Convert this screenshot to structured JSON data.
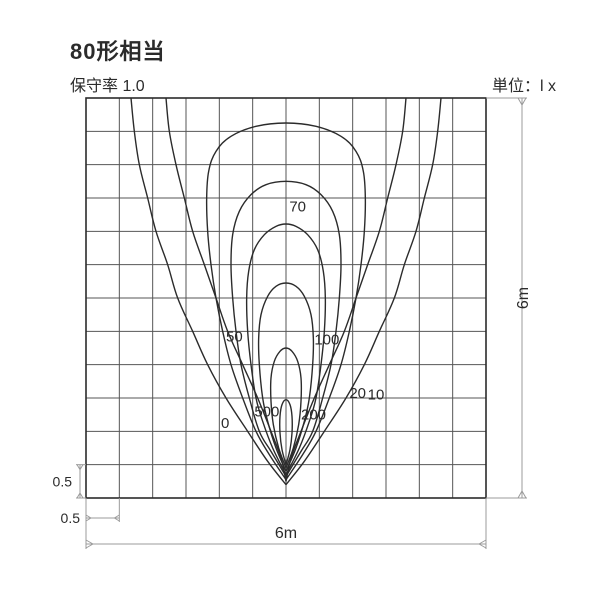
{
  "title": "80形相当",
  "subtitle_left": "保守率 1.0",
  "subtitle_right": "単位：l x",
  "plot": {
    "type": "isolux-diagram",
    "grid": {
      "size_m": 6.0,
      "cells": 12,
      "cell_m": 0.5,
      "background_color": "#ffffff",
      "grid_color": "#565656",
      "border_color": "#2b2b2b",
      "grid_width": 1,
      "border_width": 1.6
    },
    "dimension": {
      "x_label": "6m",
      "y_label": "6m",
      "minor_label": "0.5",
      "minor_label2": "0.5",
      "line_color": "#9b9b9b",
      "text_color": "#2b2b2b",
      "fontsize": 16,
      "minor_fontsize": 14
    },
    "curve_style": {
      "stroke": "#2b2b2b",
      "width": 1.4,
      "label_fontsize": 15
    },
    "iso_levels": [
      0,
      10,
      20,
      50,
      70,
      100,
      200,
      500
    ],
    "iso_curves": [
      {
        "level": "0",
        "label_xy": [
          4.05,
          9.9
        ],
        "points": [
          [
            1.35,
            0
          ],
          [
            1.45,
            1
          ],
          [
            1.6,
            2
          ],
          [
            1.85,
            3
          ],
          [
            2.1,
            4
          ],
          [
            2.45,
            5
          ],
          [
            2.75,
            6
          ],
          [
            3.2,
            7
          ],
          [
            3.65,
            8
          ],
          [
            4.2,
            9
          ],
          [
            4.85,
            10
          ],
          [
            5.45,
            10.9
          ],
          [
            6.0,
            11.6
          ]
        ]
      },
      {
        "level": "0r",
        "label_xy": null,
        "points": [
          [
            10.65,
            0
          ],
          [
            10.55,
            1
          ],
          [
            10.4,
            2
          ],
          [
            10.15,
            3
          ],
          [
            9.9,
            4
          ],
          [
            9.55,
            5
          ],
          [
            9.25,
            6
          ],
          [
            8.8,
            7
          ],
          [
            8.35,
            8
          ],
          [
            7.8,
            9
          ],
          [
            7.15,
            10
          ],
          [
            6.55,
            10.9
          ],
          [
            6.0,
            11.6
          ]
        ]
      },
      {
        "level": "10",
        "label_xy": [
          8.45,
          9.05
        ],
        "points": [
          [
            2.4,
            0
          ],
          [
            2.5,
            1
          ],
          [
            2.7,
            2
          ],
          [
            2.95,
            3
          ],
          [
            3.2,
            4
          ],
          [
            3.55,
            5
          ],
          [
            3.9,
            6
          ],
          [
            4.25,
            7
          ],
          [
            4.7,
            8
          ],
          [
            5.15,
            9
          ],
          [
            5.55,
            10
          ],
          [
            5.85,
            10.8
          ],
          [
            6.0,
            11.5
          ]
        ]
      },
      {
        "level": "10r",
        "label_xy": null,
        "points": [
          [
            9.6,
            0
          ],
          [
            9.5,
            1
          ],
          [
            9.3,
            2
          ],
          [
            9.05,
            3
          ],
          [
            8.8,
            4
          ],
          [
            8.45,
            5
          ],
          [
            8.1,
            6
          ],
          [
            7.75,
            7
          ],
          [
            7.3,
            8
          ],
          [
            6.85,
            9
          ],
          [
            6.45,
            10
          ],
          [
            6.15,
            10.8
          ],
          [
            6.0,
            11.5
          ]
        ]
      },
      {
        "level": "20",
        "label_xy": [
          7.9,
          9.0
        ],
        "points": [
          [
            6.0,
            11.45
          ],
          [
            5.5,
            10.7
          ],
          [
            5.1,
            10
          ],
          [
            4.7,
            9
          ],
          [
            4.35,
            8
          ],
          [
            4.1,
            7
          ],
          [
            3.9,
            6
          ],
          [
            3.75,
            5
          ],
          [
            3.65,
            4
          ],
          [
            3.62,
            3
          ],
          [
            3.68,
            2.2
          ],
          [
            3.9,
            1.6
          ],
          [
            4.35,
            1.15
          ],
          [
            5.1,
            0.85
          ],
          [
            6.0,
            0.75
          ],
          [
            6.9,
            0.85
          ],
          [
            7.65,
            1.15
          ],
          [
            8.1,
            1.6
          ],
          [
            8.32,
            2.2
          ],
          [
            8.38,
            3
          ],
          [
            8.35,
            4
          ],
          [
            8.25,
            5
          ],
          [
            8.1,
            6
          ],
          [
            7.9,
            7
          ],
          [
            7.65,
            8
          ],
          [
            7.3,
            9
          ],
          [
            6.9,
            10
          ],
          [
            6.5,
            10.7
          ],
          [
            6.0,
            11.45
          ]
        ]
      },
      {
        "level": "50",
        "label_xy": [
          4.2,
          7.3
        ],
        "points": [
          [
            6.0,
            11.35
          ],
          [
            5.55,
            10.6
          ],
          [
            5.2,
            10
          ],
          [
            4.9,
            9
          ],
          [
            4.65,
            8
          ],
          [
            4.5,
            7
          ],
          [
            4.4,
            6
          ],
          [
            4.35,
            5
          ],
          [
            4.4,
            4.1
          ],
          [
            4.6,
            3.4
          ],
          [
            4.95,
            2.9
          ],
          [
            5.4,
            2.6
          ],
          [
            6.0,
            2.5
          ],
          [
            6.6,
            2.6
          ],
          [
            7.05,
            2.9
          ],
          [
            7.4,
            3.4
          ],
          [
            7.6,
            4.1
          ],
          [
            7.65,
            5
          ],
          [
            7.6,
            6
          ],
          [
            7.5,
            7
          ],
          [
            7.35,
            8
          ],
          [
            7.1,
            9
          ],
          [
            6.8,
            10
          ],
          [
            6.45,
            10.6
          ],
          [
            6.0,
            11.35
          ]
        ]
      },
      {
        "level": "70",
        "label_xy": [
          6.1,
          3.4
        ],
        "points": [
          [
            6.0,
            11.3
          ],
          [
            5.6,
            10.5
          ],
          [
            5.3,
            9.7
          ],
          [
            5.1,
            9
          ],
          [
            4.95,
            8
          ],
          [
            4.85,
            7
          ],
          [
            4.82,
            6
          ],
          [
            4.88,
            5.2
          ],
          [
            5.05,
            4.55
          ],
          [
            5.35,
            4.1
          ],
          [
            5.7,
            3.85
          ],
          [
            6.0,
            3.78
          ],
          [
            6.3,
            3.85
          ],
          [
            6.65,
            4.1
          ],
          [
            6.95,
            4.55
          ],
          [
            7.12,
            5.2
          ],
          [
            7.18,
            6
          ],
          [
            7.15,
            7
          ],
          [
            7.05,
            8
          ],
          [
            6.9,
            9
          ],
          [
            6.7,
            9.7
          ],
          [
            6.4,
            10.5
          ],
          [
            6.0,
            11.3
          ]
        ]
      },
      {
        "level": "100",
        "label_xy": [
          6.85,
          7.4
        ],
        "points": [
          [
            6.0,
            11.2
          ],
          [
            5.7,
            10.5
          ],
          [
            5.45,
            9.7
          ],
          [
            5.3,
            9
          ],
          [
            5.2,
            8
          ],
          [
            5.18,
            7.2
          ],
          [
            5.25,
            6.5
          ],
          [
            5.45,
            5.95
          ],
          [
            5.7,
            5.65
          ],
          [
            6.0,
            5.55
          ],
          [
            6.3,
            5.65
          ],
          [
            6.55,
            5.95
          ],
          [
            6.75,
            6.5
          ],
          [
            6.82,
            7.2
          ],
          [
            6.8,
            8
          ],
          [
            6.7,
            9
          ],
          [
            6.55,
            9.7
          ],
          [
            6.3,
            10.5
          ],
          [
            6.0,
            11.2
          ]
        ]
      },
      {
        "level": "200",
        "label_xy": [
          6.45,
          9.65
        ],
        "points": [
          [
            6.0,
            11.1
          ],
          [
            5.78,
            10.5
          ],
          [
            5.62,
            9.8
          ],
          [
            5.55,
            9.1
          ],
          [
            5.55,
            8.4
          ],
          [
            5.65,
            7.9
          ],
          [
            5.82,
            7.6
          ],
          [
            6.0,
            7.5
          ],
          [
            6.18,
            7.6
          ],
          [
            6.35,
            7.9
          ],
          [
            6.45,
            8.4
          ],
          [
            6.45,
            9.1
          ],
          [
            6.38,
            9.8
          ],
          [
            6.22,
            10.5
          ],
          [
            6.0,
            11.1
          ]
        ]
      },
      {
        "level": "500",
        "label_xy": [
          5.05,
          9.55
        ],
        "points": [
          [
            6.0,
            11.0
          ],
          [
            5.88,
            10.55
          ],
          [
            5.82,
            10.05
          ],
          [
            5.82,
            9.55
          ],
          [
            5.88,
            9.2
          ],
          [
            6.0,
            9.05
          ],
          [
            6.12,
            9.2
          ],
          [
            6.18,
            9.55
          ],
          [
            6.18,
            10.05
          ],
          [
            6.12,
            10.55
          ],
          [
            6.0,
            11.0
          ]
        ]
      }
    ]
  }
}
